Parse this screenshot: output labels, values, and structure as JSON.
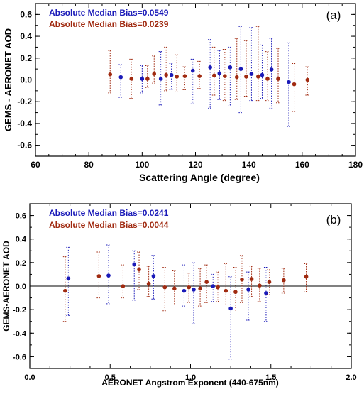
{
  "colors": {
    "series_1": "#1a1ab8",
    "series_2": "#a02a10",
    "axis": "#000000",
    "background": "#ffffff"
  },
  "chart_data": [
    {
      "type": "scatter",
      "panel_label": "(a)",
      "xlabel": "Scattering Angle (degree)",
      "ylabel": "GEMS - AERONET AOD",
      "xlim": [
        60,
        180
      ],
      "ylim": [
        -0.7,
        0.7
      ],
      "x_ticks": [
        60,
        80,
        100,
        120,
        140,
        160,
        180
      ],
      "y_ticks": [
        -0.6,
        -0.4,
        -0.2,
        0.0,
        0.2,
        0.4,
        0.6
      ],
      "x_tick_labels": [
        "60",
        "80",
        "100",
        "120",
        "140",
        "160",
        "180"
      ],
      "y_tick_labels": [
        "-0.6",
        "-0.4",
        "-0.2",
        "0.0",
        "0.2",
        "0.4",
        "0.6"
      ],
      "grid": false,
      "reference_line_y": 0,
      "error_bars": true,
      "annotations": [
        "Absolute Median Bias=0.0549",
        "Absolute Median Bias=0.0239"
      ],
      "series": [
        {
          "points": [
            {
              "x": 92.0,
              "y": 0.025,
              "ylow": -0.16,
              "yhigh": 0.14
            },
            {
              "x": 100.0,
              "y": 0.01,
              "ylow": -0.12,
              "yhigh": 0.13
            },
            {
              "x": 107.0,
              "y": 0.01,
              "ylow": -0.23,
              "yhigh": 0.26
            },
            {
              "x": 111.0,
              "y": 0.045,
              "ylow": -0.09,
              "yhigh": 0.15
            },
            {
              "x": 119.0,
              "y": 0.085,
              "ylow": -0.22,
              "yhigh": 0.19
            },
            {
              "x": 125.5,
              "y": 0.115,
              "ylow": -0.26,
              "yhigh": 0.37
            },
            {
              "x": 129.0,
              "y": 0.06,
              "ylow": -0.18,
              "yhigh": 0.27
            },
            {
              "x": 133.0,
              "y": 0.115,
              "ylow": -0.24,
              "yhigh": 0.3
            },
            {
              "x": 137.0,
              "y": 0.1,
              "ylow": -0.3,
              "yhigh": 0.49
            },
            {
              "x": 141.0,
              "y": 0.055,
              "ylow": -0.19,
              "yhigh": 0.48
            },
            {
              "x": 145.0,
              "y": 0.045,
              "ylow": -0.17,
              "yhigh": 0.32
            },
            {
              "x": 148.5,
              "y": 0.095,
              "ylow": -0.26,
              "yhigh": 0.38
            },
            {
              "x": 155.0,
              "y": -0.02,
              "ylow": -0.43,
              "yhigh": 0.34
            }
          ]
        },
        {
          "points": [
            {
              "x": 88.0,
              "y": 0.05,
              "ylow": -0.12,
              "yhigh": 0.27
            },
            {
              "x": 96.0,
              "y": 0.01,
              "ylow": -0.17,
              "yhigh": 0.19
            },
            {
              "x": 102.0,
              "y": 0.01,
              "ylow": -0.07,
              "yhigh": 0.13
            },
            {
              "x": 104.5,
              "y": 0.055,
              "ylow": -0.03,
              "yhigh": 0.22
            },
            {
              "x": 109.0,
              "y": 0.045,
              "ylow": -0.1,
              "yhigh": 0.3
            },
            {
              "x": 113.0,
              "y": 0.03,
              "ylow": -0.11,
              "yhigh": 0.23
            },
            {
              "x": 116.0,
              "y": 0.035,
              "ylow": -0.09,
              "yhigh": 0.12
            },
            {
              "x": 121.5,
              "y": 0.035,
              "ylow": -0.08,
              "yhigh": 0.17
            },
            {
              "x": 127.0,
              "y": 0.04,
              "ylow": -0.14,
              "yhigh": 0.3
            },
            {
              "x": 131.0,
              "y": 0.035,
              "ylow": -0.19,
              "yhigh": 0.28
            },
            {
              "x": 135.5,
              "y": 0.025,
              "ylow": -0.18,
              "yhigh": 0.38
            },
            {
              "x": 139.0,
              "y": 0.03,
              "ylow": -0.15,
              "yhigh": 0.36
            },
            {
              "x": 143.5,
              "y": 0.03,
              "ylow": -0.19,
              "yhigh": 0.49
            },
            {
              "x": 147.0,
              "y": 0.01,
              "ylow": -0.19,
              "yhigh": 0.26
            },
            {
              "x": 151.0,
              "y": 0.01,
              "ylow": -0.21,
              "yhigh": 0.29
            },
            {
              "x": 157.0,
              "y": -0.04,
              "ylow": -0.29,
              "yhigh": 0.15
            },
            {
              "x": 162.0,
              "y": 0.0,
              "ylow": -0.14,
              "yhigh": 0.12
            }
          ]
        }
      ]
    },
    {
      "type": "scatter",
      "panel_label": "(b)",
      "xlabel": "AERONET Angstrom Exponent (440-675nm)",
      "ylabel": "GEMS-AERONET AOD",
      "xlim": [
        0.0,
        2.0
      ],
      "ylim": [
        -0.7,
        0.7
      ],
      "x_ticks": [
        0.0,
        0.5,
        1.0,
        1.5,
        2.0
      ],
      "y_ticks": [
        -0.6,
        -0.4,
        -0.2,
        0.0,
        0.2,
        0.4,
        0.6
      ],
      "x_tick_labels": [
        "0.0",
        "0.5",
        "1.0",
        "1.5",
        "2.0"
      ],
      "y_tick_labels": [
        "-0.6",
        "-0.4",
        "-0.2",
        "0.0",
        "0.2",
        "0.4",
        "0.6"
      ],
      "grid": false,
      "reference_line_y": 0,
      "error_bars": true,
      "annotations": [
        "Absolute Median Bias=0.0241",
        "Absolute Median Bias=0.0044"
      ],
      "series": [
        {
          "points": [
            {
              "x": 0.24,
              "y": 0.065,
              "ylow": -0.25,
              "yhigh": 0.33
            },
            {
              "x": 0.49,
              "y": 0.09,
              "ylow": -0.15,
              "yhigh": 0.35
            },
            {
              "x": 0.65,
              "y": 0.185,
              "ylow": -0.12,
              "yhigh": 0.3
            },
            {
              "x": 0.77,
              "y": 0.085,
              "ylow": -0.11,
              "yhigh": 0.26
            },
            {
              "x": 0.96,
              "y": -0.04,
              "ylow": -0.17,
              "yhigh": 0.18
            },
            {
              "x": 1.02,
              "y": -0.03,
              "ylow": -0.32,
              "yhigh": 0.2
            },
            {
              "x": 1.14,
              "y": 0.0,
              "ylow": -0.13,
              "yhigh": 0.1
            },
            {
              "x": 1.25,
              "y": -0.19,
              "ylow": -0.62,
              "yhigh": 0.08
            },
            {
              "x": 1.36,
              "y": -0.03,
              "ylow": -0.29,
              "yhigh": 0.12
            },
            {
              "x": 1.47,
              "y": -0.06,
              "ylow": -0.3,
              "yhigh": 0.16
            }
          ]
        },
        {
          "points": [
            {
              "x": 0.22,
              "y": -0.04,
              "ylow": -0.3,
              "yhigh": 0.25
            },
            {
              "x": 0.43,
              "y": 0.085,
              "ylow": -0.1,
              "yhigh": 0.29
            },
            {
              "x": 0.58,
              "y": 0.0,
              "ylow": -0.1,
              "yhigh": 0.18
            },
            {
              "x": 0.68,
              "y": 0.14,
              "ylow": -0.03,
              "yhigh": 0.29
            },
            {
              "x": 0.74,
              "y": 0.02,
              "ylow": -0.09,
              "yhigh": 0.17
            },
            {
              "x": 0.84,
              "y": -0.01,
              "ylow": -0.21,
              "yhigh": 0.16
            },
            {
              "x": 0.9,
              "y": -0.02,
              "ylow": -0.16,
              "yhigh": 0.13
            },
            {
              "x": 0.99,
              "y": -0.01,
              "ylow": -0.14,
              "yhigh": 0.11
            },
            {
              "x": 1.06,
              "y": -0.02,
              "ylow": -0.17,
              "yhigh": 0.15
            },
            {
              "x": 1.1,
              "y": 0.035,
              "ylow": -0.14,
              "yhigh": 0.18
            },
            {
              "x": 1.17,
              "y": -0.01,
              "ylow": -0.13,
              "yhigh": 0.12
            },
            {
              "x": 1.22,
              "y": -0.04,
              "ylow": -0.16,
              "yhigh": 0.19
            },
            {
              "x": 1.28,
              "y": -0.05,
              "ylow": -0.22,
              "yhigh": 0.16
            },
            {
              "x": 1.32,
              "y": 0.055,
              "ylow": -0.14,
              "yhigh": 0.26
            },
            {
              "x": 1.38,
              "y": 0.06,
              "ylow": -0.09,
              "yhigh": 0.17
            },
            {
              "x": 1.43,
              "y": 0.005,
              "ylow": -0.13,
              "yhigh": 0.15
            },
            {
              "x": 1.49,
              "y": 0.035,
              "ylow": -0.07,
              "yhigh": 0.14
            },
            {
              "x": 1.58,
              "y": 0.05,
              "ylow": -0.06,
              "yhigh": 0.15
            },
            {
              "x": 1.72,
              "y": 0.08,
              "ylow": -0.05,
              "yhigh": 0.19
            }
          ]
        }
      ]
    }
  ]
}
